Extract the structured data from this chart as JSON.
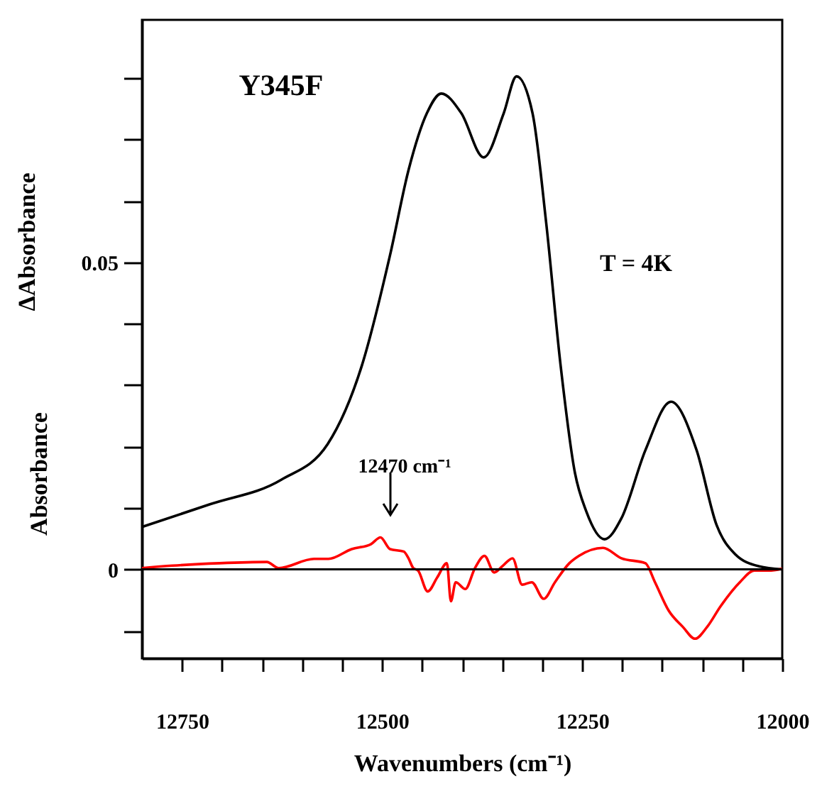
{
  "chart_data": {
    "type": "line",
    "xlabel": "Wavenumbers (cm⁻¹)",
    "ylabel": "ΔAbsorbance",
    "annotations": [
      "Absorbance",
      "Y345F",
      "T = 4K",
      "12470 cm⁻¹"
    ],
    "xlim": [
      12800,
      12000
    ],
    "xticks": [
      12750,
      {
        "value": 12700,
        "label": null
      },
      {
        "value": 12650,
        "label": null
      },
      {
        "value": 12600,
        "label": null
      },
      {
        "value": 12550,
        "label": null
      },
      12500,
      {
        "value": 12450,
        "label": null
      },
      {
        "value": 12400,
        "label": null
      },
      {
        "value": 12350,
        "label": null
      },
      {
        "value": 12300,
        "label": null
      },
      12250,
      {
        "value": 12200,
        "label": null
      },
      {
        "value": 12150,
        "label": null
      },
      {
        "value": 12100,
        "label": null
      },
      {
        "value": 12050,
        "label": null
      },
      12000
    ],
    "ylim": [
      -0.0145,
      0.0895
    ],
    "yticks": [
      {
        "value": -0.01,
        "label": null
      },
      0,
      {
        "value": 0.01,
        "label": null
      },
      {
        "value": 0.02,
        "label": null
      },
      {
        "value": 0.03,
        "label": null
      },
      {
        "value": 0.04,
        "label": null
      },
      0.05,
      {
        "value": 0.06,
        "label": null
      },
      {
        "value": 0.07,
        "label": null
      },
      {
        "value": 0.08,
        "label": null
      }
    ],
    "grid": false,
    "line_style": "solid",
    "ref_lines": [
      {
        "axis": "y",
        "value": 0,
        "color": "#000000"
      }
    ],
    "series": [
      {
        "color": "#000000",
        "x": [
          12800,
          12715,
          12626,
          12568,
          12525,
          12490,
          12467,
          12444,
          12426,
          12401,
          12373,
          12348,
          12332,
          12312,
          12295,
          12277,
          12259,
          12245,
          12222,
          12201,
          12171,
          12139,
          12107,
          12082,
          12059,
          12029,
          12000
        ],
        "values": [
          0.0069,
          0.0106,
          0.0146,
          0.0204,
          0.0333,
          0.0512,
          0.065,
          0.0743,
          0.0775,
          0.0743,
          0.0671,
          0.0743,
          0.0803,
          0.0743,
          0.0565,
          0.0333,
          0.0157,
          0.0095,
          0.0049,
          0.0083,
          0.0194,
          0.0273,
          0.0194,
          0.0072,
          0.0025,
          0.0005,
          0.0
        ]
      },
      {
        "color": "#ff0000",
        "x": [
          12800,
          12762,
          12703,
          12644,
          12629,
          12585,
          12567,
          12538,
          12514,
          12502,
          12490,
          12473,
          12467,
          12461,
          12455,
          12443,
          12431,
          12419,
          12414,
          12408,
          12396,
          12384,
          12372,
          12360,
          12349,
          12337,
          12325,
          12313,
          12298,
          12284,
          12266,
          12254,
          12224,
          12201,
          12171,
          12159,
          12142,
          12124,
          12109,
          12094,
          12077,
          12053,
          12035,
          12017,
          12000
        ],
        "values": [
          0.0002,
          0.0006,
          0.001,
          0.0012,
          0.0002,
          0.0017,
          0.0017,
          0.0033,
          0.0041,
          0.0052,
          0.0033,
          0.0029,
          0.0018,
          0.0002,
          -0.0002,
          -0.0036,
          -0.0013,
          0.001,
          -0.0052,
          -0.0021,
          -0.0032,
          0.0002,
          0.0022,
          -0.0005,
          0.0006,
          0.0018,
          -0.0025,
          -0.0021,
          -0.0048,
          -0.0021,
          0.001,
          0.0022,
          0.0035,
          0.0018,
          0.001,
          -0.0021,
          -0.0067,
          -0.0094,
          -0.0113,
          -0.0094,
          -0.006,
          -0.0021,
          -0.0002,
          -0.0002,
          0.0001
        ]
      }
    ]
  }
}
